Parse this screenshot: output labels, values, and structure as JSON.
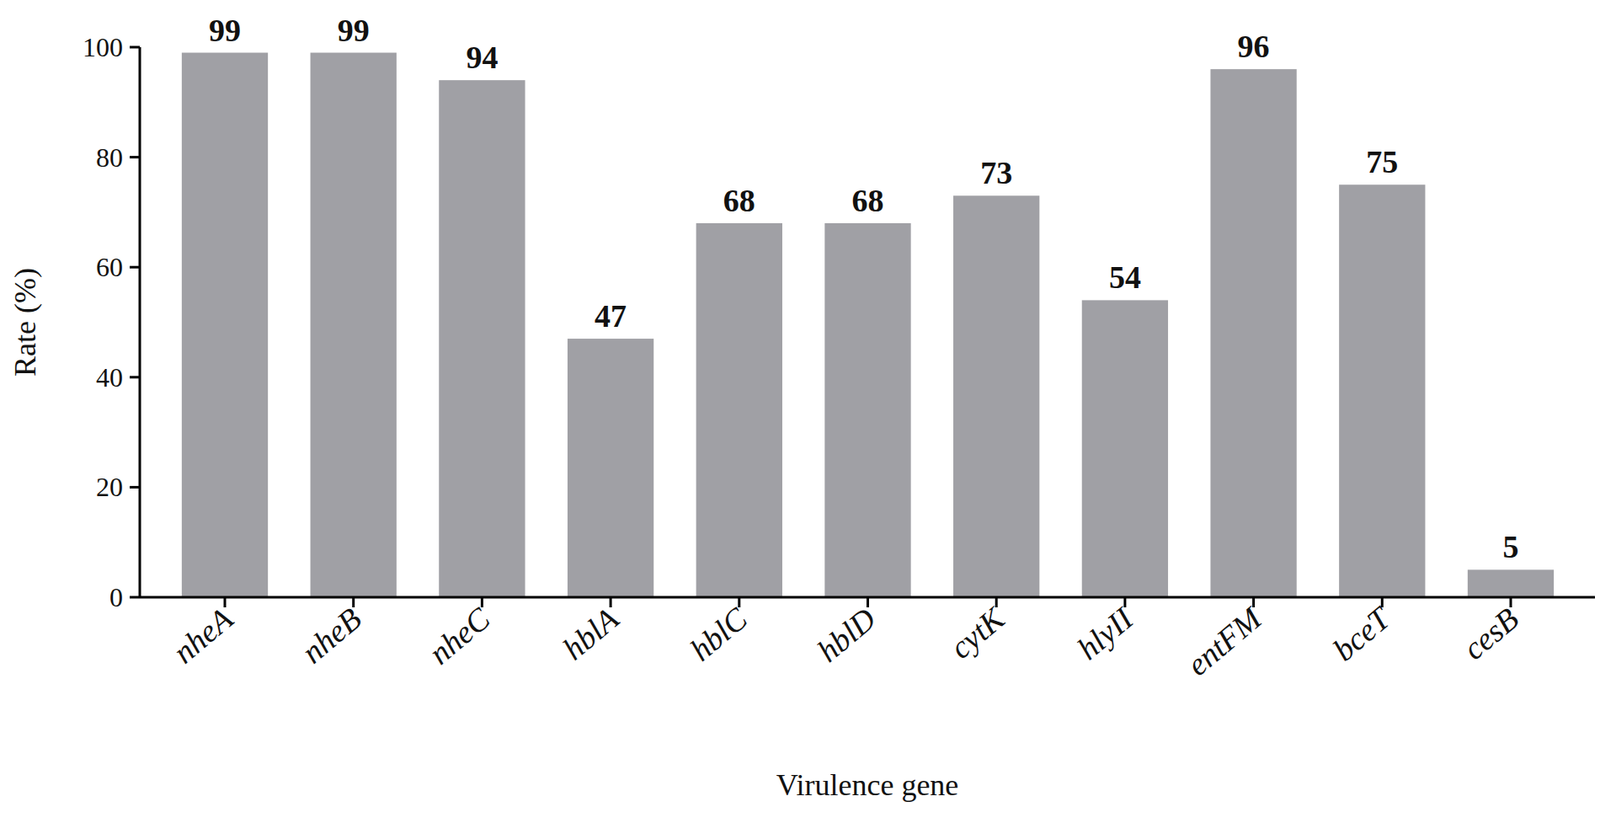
{
  "chart_data": {
    "type": "bar",
    "x_label": "Virulence gene",
    "y_label": "Rate (%)",
    "categories": [
      "nheA",
      "nheB",
      "nheC",
      "hblA",
      "hblC",
      "hblD",
      "cytK",
      "hlyII",
      "entFM",
      "bceT",
      "cesB"
    ],
    "values": [
      99,
      99,
      94,
      47,
      68,
      68,
      73,
      54,
      96,
      75,
      5
    ],
    "color": "#a0a0a5",
    "ylim": [
      0,
      100
    ],
    "yticks": [
      0,
      20,
      40,
      60,
      80,
      100
    ],
    "grid": false,
    "data_labels": true
  }
}
